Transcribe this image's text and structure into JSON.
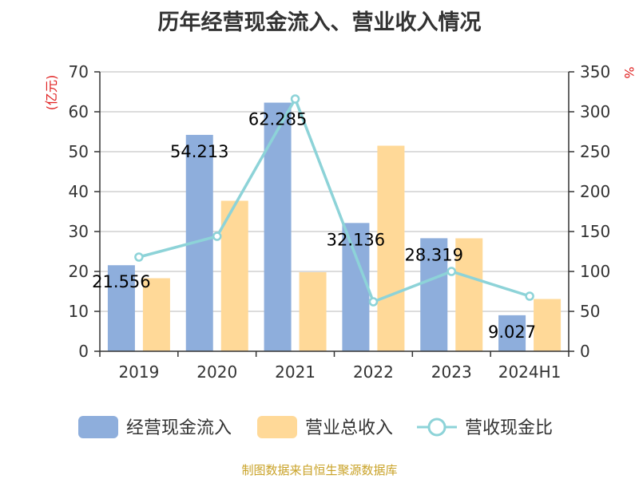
{
  "chart_data": {
    "type": "bar",
    "title": "历年经营现金流入、营业收入情况",
    "categories": [
      "2019",
      "2020",
      "2021",
      "2022",
      "2023",
      "2024H1"
    ],
    "y_left": {
      "label": "(亿元)",
      "ylim": [
        0,
        70
      ],
      "ticks": [
        0,
        10,
        20,
        30,
        40,
        50,
        60,
        70
      ]
    },
    "y_right": {
      "label": "%",
      "ylim": [
        0,
        350
      ],
      "ticks": [
        0,
        50,
        100,
        150,
        200,
        250,
        300,
        350
      ]
    },
    "series": [
      {
        "name": "经营现金流入",
        "type": "bar",
        "axis": "left",
        "color": "#8eaedc",
        "values": [
          21.556,
          54.213,
          62.285,
          32.136,
          28.319,
          9.027
        ],
        "labels": [
          "21.556",
          "54.213",
          "62.285",
          "32.136",
          "28.319",
          "9.027"
        ]
      },
      {
        "name": "营业总收入",
        "type": "bar",
        "axis": "left",
        "color": "#ffd998",
        "values": [
          18.3,
          37.7,
          19.8,
          51.5,
          28.3,
          13.1
        ]
      },
      {
        "name": "营收现金比",
        "type": "line",
        "axis": "right",
        "color": "#8dd3d8",
        "values": [
          118,
          144,
          316,
          62,
          100,
          69
        ]
      }
    ],
    "grid": true,
    "legend_position": "bottom"
  },
  "source": "制图数据来自恒生聚源数据库"
}
